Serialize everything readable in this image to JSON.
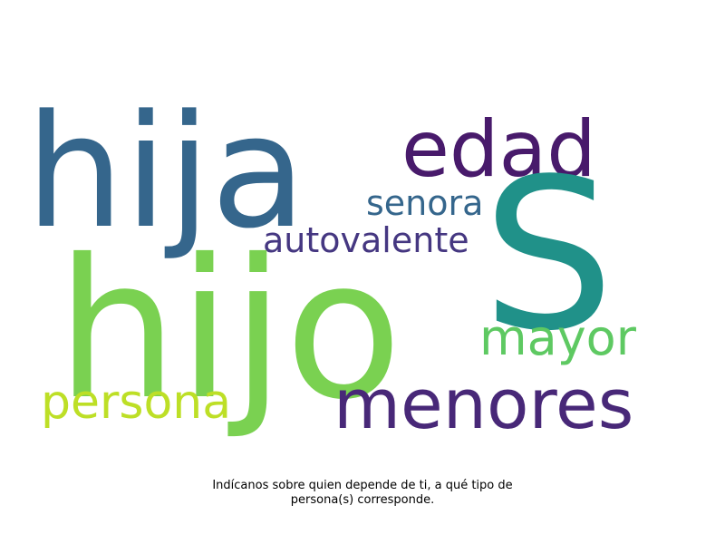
{
  "wordcloud": {
    "words": [
      {
        "text": "hija",
        "color": "#35668c"
      },
      {
        "text": "edad",
        "color": "#481a6b"
      },
      {
        "text": "senora",
        "color": "#35668c"
      },
      {
        "text": "S",
        "color": "#209189"
      },
      {
        "text": "autovalente",
        "color": "#453781"
      },
      {
        "text": "hijo",
        "color": "#7ad151"
      },
      {
        "text": "mayor",
        "color": "#5ec962"
      },
      {
        "text": "persona",
        "color": "#bddf26"
      },
      {
        "text": "menores",
        "color": "#482878"
      }
    ]
  },
  "caption": {
    "line1": "Indícanos sobre quien depende de ti, a qué tipo de",
    "line2": "persona(s) corresponde."
  }
}
